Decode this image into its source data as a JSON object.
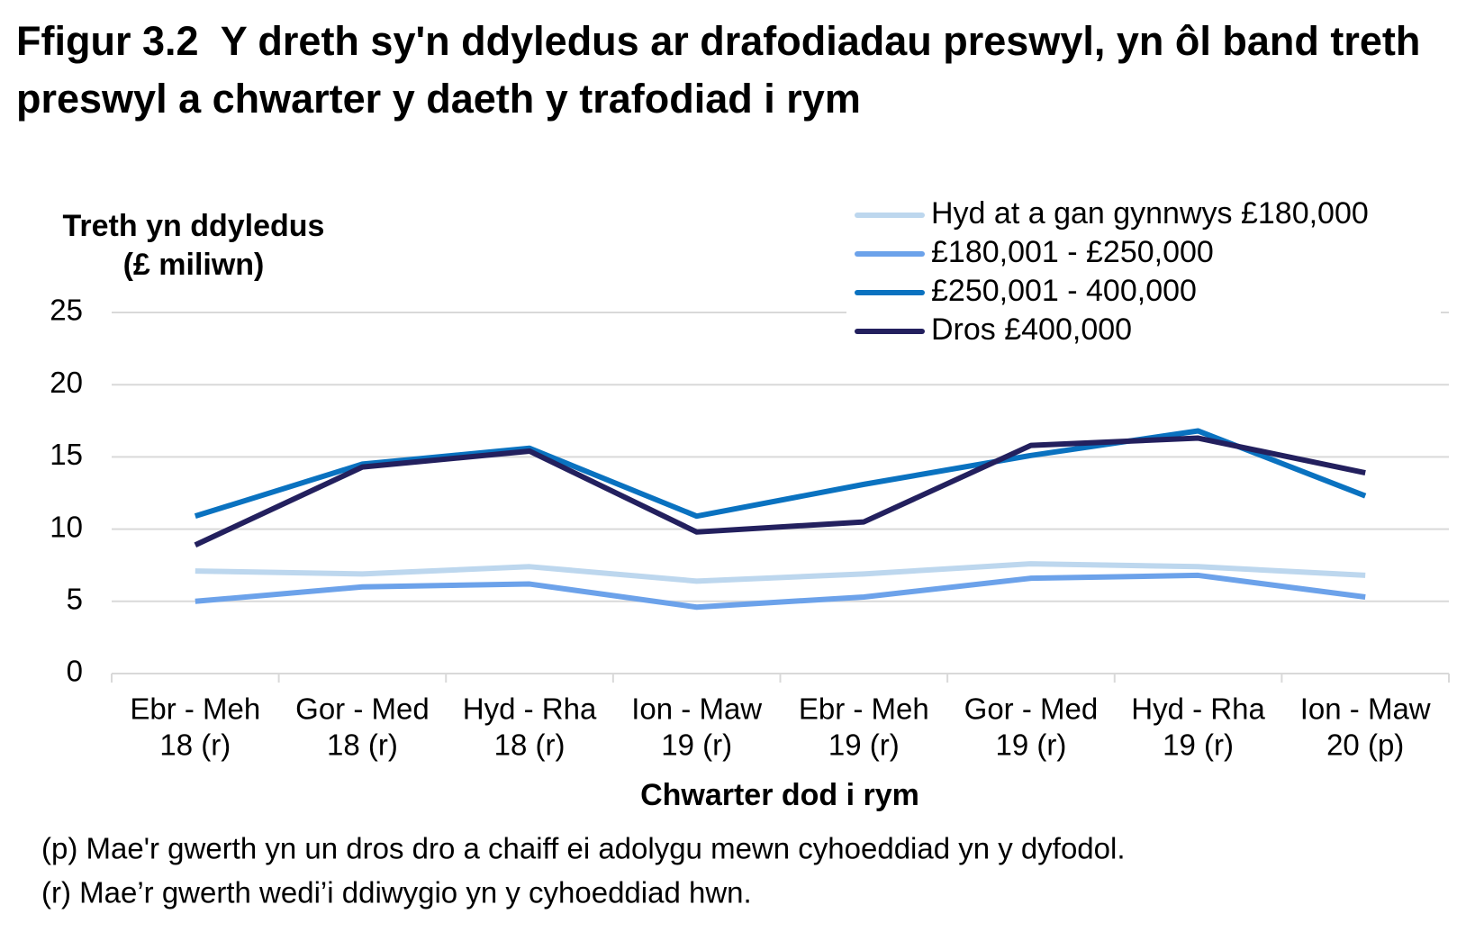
{
  "chart_data": {
    "type": "line",
    "title": "Ffigur 3.2  Y dreth sy'n ddyledus ar drafodiadau preswyl, yn ôl band treth preswyl a chwarter y daeth y trafodiad i rym",
    "y_label": [
      "Treth yn ddyledus",
      "(£ miliwn)"
    ],
    "x_label": "Chwarter dod i rym",
    "categories": [
      [
        "Ebr - Meh",
        "18 (r)"
      ],
      [
        "Gor - Med",
        "18 (r)"
      ],
      [
        "Hyd - Rha",
        "18 (r)"
      ],
      [
        "Ion - Maw",
        "19 (r)"
      ],
      [
        "Ebr - Meh",
        "19 (r)"
      ],
      [
        "Gor - Med",
        "19 (r)"
      ],
      [
        "Hyd - Rha",
        "19 (r)"
      ],
      [
        "Ion - Maw",
        "20 (p)"
      ]
    ],
    "series": [
      {
        "name": "Hyd at a gan gynnwys £180,000",
        "color": "#bdd7ee",
        "values": [
          7.1,
          6.9,
          7.4,
          6.4,
          6.9,
          7.6,
          7.4,
          6.8
        ]
      },
      {
        "name": "£180,001 - £250,000",
        "color": "#6ca2ea",
        "values": [
          5.0,
          6.0,
          6.2,
          4.6,
          5.3,
          6.6,
          6.8,
          5.3
        ]
      },
      {
        "name": "£250,001 - 400,000",
        "color": "#0a72c0",
        "values": [
          10.9,
          14.5,
          15.6,
          10.9,
          13.1,
          15.1,
          16.8,
          12.3
        ]
      },
      {
        "name": "Dros £400,000",
        "color": "#23205e",
        "values": [
          8.9,
          14.3,
          15.4,
          9.8,
          10.5,
          15.8,
          16.3,
          13.9
        ]
      }
    ],
    "ylim": [
      0,
      25
    ],
    "yticks": [
      0,
      5,
      10,
      15,
      20,
      25
    ],
    "grid": true,
    "legend": "top-right",
    "notes": [
      "(p) Mae'r gwerth yn un dros dro a chaiff ei adolygu mewn cyhoeddiad yn y dyfodol.",
      "(r) Mae’r gwerth wedi’i ddiwygio yn y cyhoeddiad hwn."
    ]
  }
}
